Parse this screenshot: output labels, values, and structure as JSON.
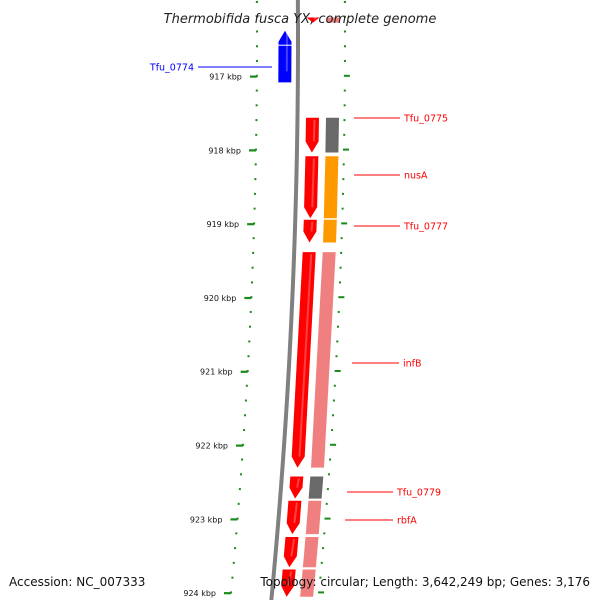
{
  "title": "Thermobifida fusca YX, complete genome",
  "accession": "Accession: NC_007333",
  "topology": "Topology: circular; Length: 3,642,249 bp; Genes: 3,176",
  "colors": {
    "forward": "#ff0000",
    "forward_light": "#f08080",
    "reverse": "#0000ff",
    "unknown_cog": "#696969",
    "cog_orange": "#ff9900",
    "backbone": "#808080",
    "ticks": "#1a8a1a"
  },
  "chart_data": {
    "type": "diagram",
    "range_kbp": [
      916.2,
      924.05
    ],
    "ticks": [
      {
        "kbp": 917,
        "label": "917 kbp"
      },
      {
        "kbp": 918,
        "label": "918 kbp"
      },
      {
        "kbp": 919,
        "label": "919 kbp"
      },
      {
        "kbp": 920,
        "label": "920 kbp"
      },
      {
        "kbp": 921,
        "label": "921 kbp"
      },
      {
        "kbp": 922,
        "label": "922 kbp"
      },
      {
        "kbp": 923,
        "label": "923 kbp"
      },
      {
        "kbp": 924,
        "label": "924 kbp"
      }
    ],
    "genes": [
      {
        "label": "Tfu_0774",
        "start_kbp": 916.38,
        "end_kbp": 917.08,
        "strand": "reverse",
        "cog_color": ""
      },
      {
        "label": "Tfu_0775",
        "start_kbp": 917.56,
        "end_kbp": 918.03,
        "strand": "forward",
        "cog_color": "#696969"
      },
      {
        "label": "nusA",
        "start_kbp": 918.08,
        "end_kbp": 918.92,
        "strand": "forward",
        "cog_color": "#ff9900"
      },
      {
        "label": "Tfu_0777",
        "start_kbp": 918.94,
        "end_kbp": 919.25,
        "strand": "forward",
        "cog_color": "#ff9900"
      },
      {
        "label": "infB",
        "start_kbp": 919.38,
        "end_kbp": 922.3,
        "strand": "forward",
        "cog_color": "#f08080"
      },
      {
        "label": "Tfu_0779",
        "start_kbp": 922.42,
        "end_kbp": 922.72,
        "strand": "forward",
        "cog_color": "#696969"
      },
      {
        "label": "rbfA",
        "start_kbp": 922.75,
        "end_kbp": 923.2,
        "strand": "forward",
        "cog_color": "#f08080"
      },
      {
        "label": "",
        "start_kbp": 923.24,
        "end_kbp": 923.65,
        "strand": "forward",
        "cog_color": "#f08080"
      },
      {
        "label": "",
        "start_kbp": 923.68,
        "end_kbp": 924.05,
        "strand": "forward",
        "cog_color": "#f08080"
      },
      {
        "label": "",
        "start_kbp": 916.2,
        "end_kbp": 916.27,
        "strand": "forward",
        "cog_color": "#f08080"
      }
    ]
  }
}
